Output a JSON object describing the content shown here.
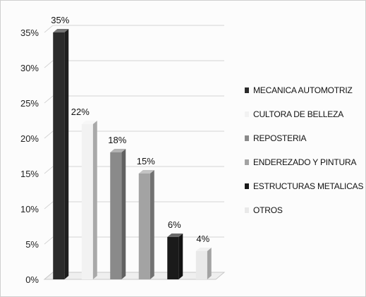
{
  "chart_data": {
    "type": "bar",
    "categories": [
      "MECANICA AUTOMOTRIZ",
      "CULTORA DE BELLEZA",
      "REPOSTERIA",
      "ENDEREZADO Y PINTURA",
      "ESTRUCTURAS METALICAS",
      "OTROS"
    ],
    "values": [
      35,
      22,
      18,
      15,
      6,
      4
    ],
    "data_labels": [
      "35%",
      "22%",
      "18%",
      "15%",
      "6%",
      "4%"
    ],
    "colors": [
      "#2b2b2b",
      "#f2f2f2",
      "#8a8a8a",
      "#a3a3a3",
      "#1a1a1a",
      "#e9e9e9"
    ],
    "ylim": [
      0,
      35
    ],
    "yticks": [
      "0%",
      "5%",
      "10%",
      "15%",
      "20%",
      "25%",
      "30%",
      "35%"
    ],
    "grid": true,
    "legend": "right",
    "style": "3d-bars"
  }
}
